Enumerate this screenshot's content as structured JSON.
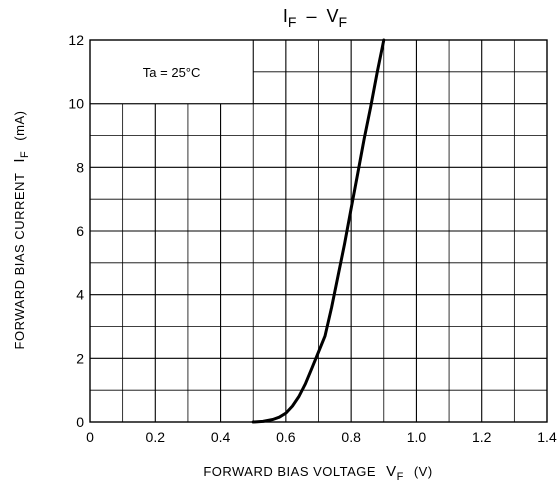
{
  "chart_data": {
    "type": "line",
    "title": "I_F – V_F",
    "title_parts": {
      "main": "I",
      "main_sub": "F",
      "dash": "–",
      "second": "V",
      "second_sub": "F"
    },
    "xlabel": {
      "text": "FORWARD BIAS VOLTAGE",
      "symbol": "V",
      "symbol_sub": "F",
      "unit": "(V)"
    },
    "ylabel": {
      "text": "FORWARD BIAS CURRENT",
      "symbol": "I",
      "symbol_sub": "F",
      "unit": "(mA)"
    },
    "xlim": [
      0,
      1.4
    ],
    "ylim": [
      0,
      12
    ],
    "x_ticks": [
      0,
      0.2,
      0.4,
      0.6,
      0.8,
      1.0,
      1.2,
      1.4
    ],
    "x_tick_labels": [
      "0",
      "0.2",
      "0.4",
      "0.6",
      "0.8",
      "1.0",
      "1.2",
      "1.4"
    ],
    "y_ticks": [
      0,
      2,
      4,
      6,
      8,
      10,
      12
    ],
    "y_tick_labels": [
      "0",
      "2",
      "4",
      "6",
      "8",
      "10",
      "12"
    ],
    "grid": true,
    "annotation": "Ta = 25°C",
    "series": [
      {
        "x": [
          0.5,
          0.53,
          0.56,
          0.58,
          0.6,
          0.62,
          0.64,
          0.66,
          0.68,
          0.7,
          0.72,
          0.74,
          0.76,
          0.78,
          0.8,
          0.82,
          0.84,
          0.86,
          0.88,
          0.9
        ],
        "y": [
          0.0,
          0.02,
          0.08,
          0.15,
          0.28,
          0.5,
          0.8,
          1.2,
          1.7,
          2.2,
          2.7,
          3.6,
          4.6,
          5.6,
          6.7,
          7.8,
          8.9,
          9.9,
          11.0,
          12.0
        ]
      }
    ]
  }
}
